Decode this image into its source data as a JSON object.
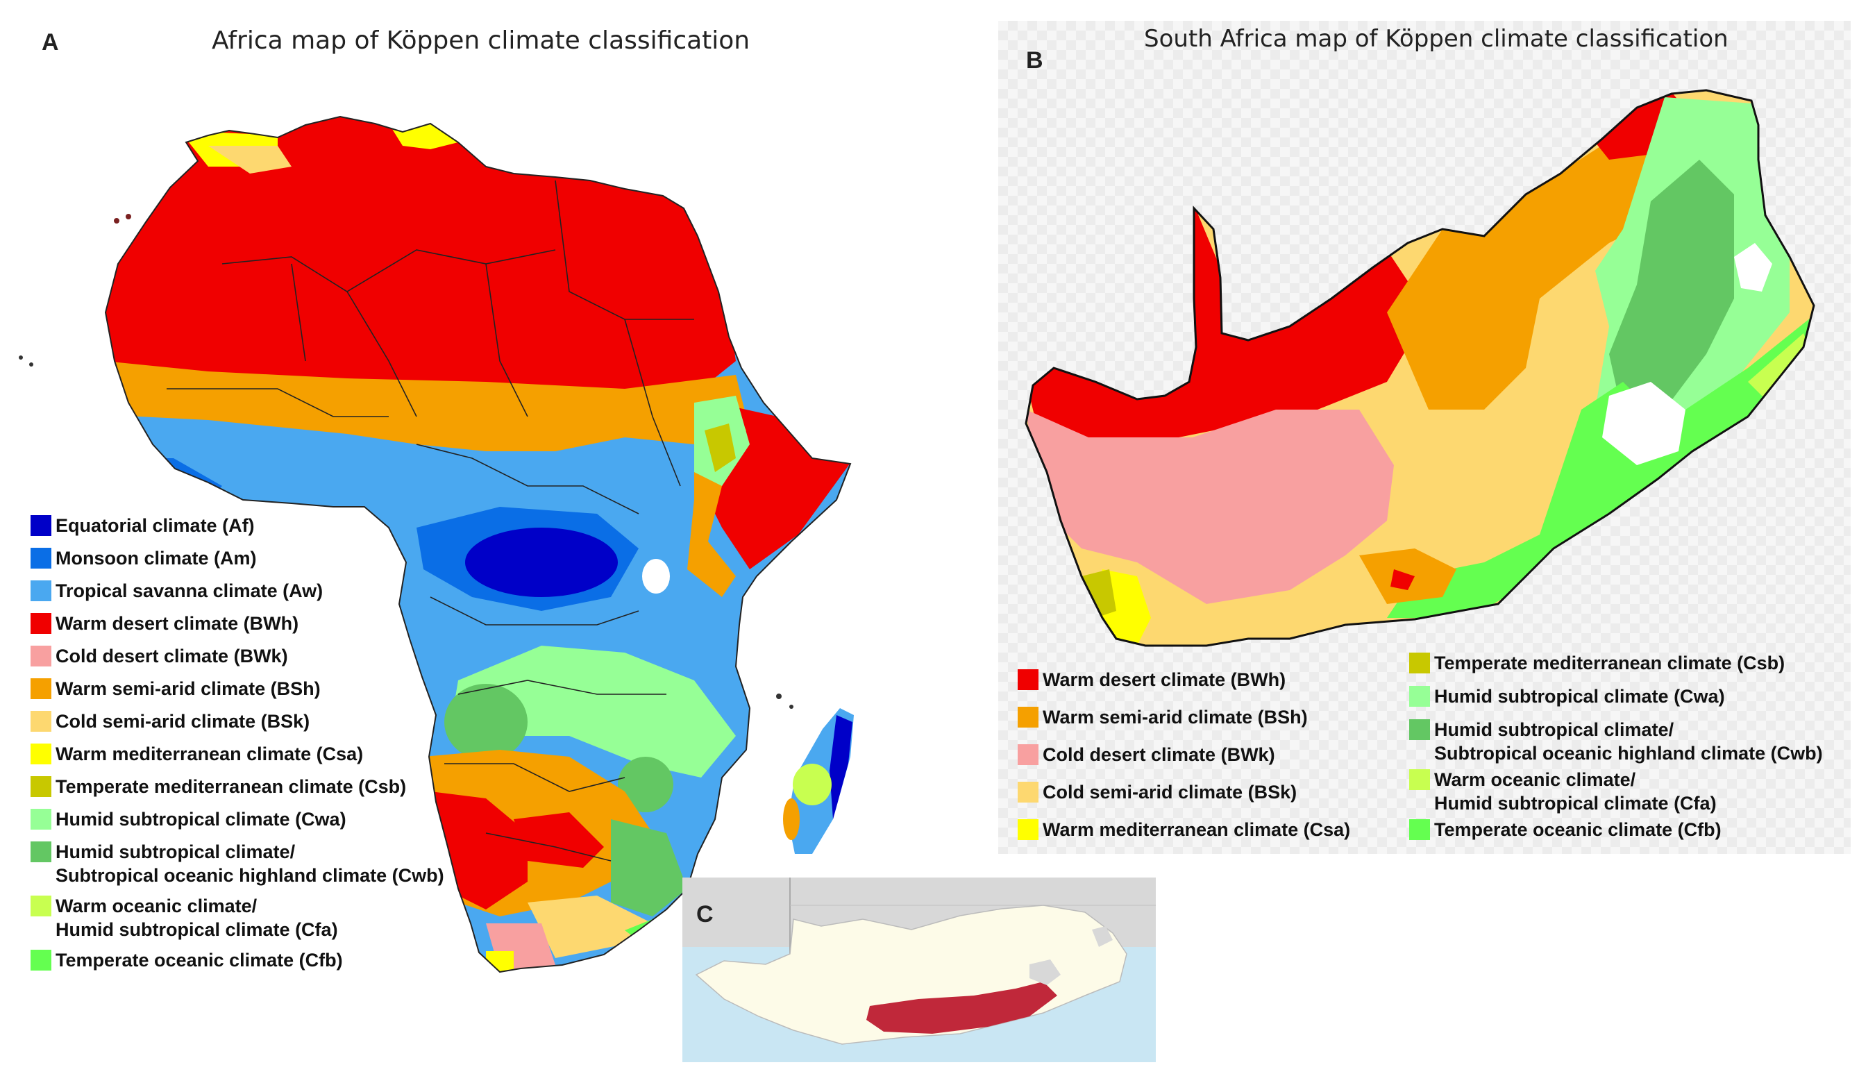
{
  "panels": {
    "a": {
      "letter": "A",
      "title": "Africa map of Köppen climate classification"
    },
    "b": {
      "letter": "B",
      "title": "South Africa map of Köppen climate classification"
    },
    "c": {
      "letter": "C"
    }
  },
  "legend_a": [
    {
      "label": "Equatorial climate (Af)",
      "color": "#0000c8"
    },
    {
      "label": "Monsoon climate (Am)",
      "color": "#0a6ee6"
    },
    {
      "label": "Tropical savanna climate (Aw)",
      "color": "#4aa8f0"
    },
    {
      "label": "Warm desert climate (BWh)",
      "color": "#f00000"
    },
    {
      "label": "Cold desert climate (BWk)",
      "color": "#f8a0a0"
    },
    {
      "label": "Warm semi-arid climate (BSh)",
      "color": "#f5a000"
    },
    {
      "label": "Cold semi-arid climate (BSk)",
      "color": "#fdd870"
    },
    {
      "label": "Warm mediterranean climate (Csa)",
      "color": "#ffff00"
    },
    {
      "label": "Temperate mediterranean climate (Csb)",
      "color": "#c8c800"
    },
    {
      "label": "Humid subtropical climate (Cwa)",
      "color": "#96ff96"
    },
    {
      "label": [
        "Humid subtropical climate/",
        "Subtropical oceanic highland climate (Cwb)"
      ],
      "color": "#63c763"
    },
    {
      "label": [
        "Warm oceanic climate/",
        "Humid subtropical climate (Cfa)"
      ],
      "color": "#c8ff50"
    },
    {
      "label": "Temperate oceanic climate (Cfb)",
      "color": "#64ff50"
    }
  ],
  "legend_b_left": [
    {
      "label": "Warm desert climate (BWh)",
      "color": "#f00000"
    },
    {
      "label": "Warm semi-arid climate (BSh)",
      "color": "#f5a000"
    },
    {
      "label": "Cold desert climate (BWk)",
      "color": "#f8a0a0"
    },
    {
      "label": "Cold semi-arid climate (BSk)",
      "color": "#fdd870"
    },
    {
      "label": "Warm mediterranean climate (Csa)",
      "color": "#ffff00"
    }
  ],
  "legend_b_right": [
    {
      "label": "Temperate mediterranean climate (Csb)",
      "color": "#c8c800"
    },
    {
      "label": "Humid subtropical climate (Cwa)",
      "color": "#96ff96"
    },
    {
      "label": [
        "Humid subtropical climate/",
        "Subtropical oceanic highland climate (Cwb)"
      ],
      "color": "#63c763"
    },
    {
      "label": [
        "Warm oceanic climate/",
        "Humid subtropical climate (Cfa)"
      ],
      "color": "#c8ff50"
    },
    {
      "label": "Temperate oceanic climate (Cfb)",
      "color": "#64ff50"
    }
  ],
  "inset": {
    "highlight_color": "#c0283a",
    "land_color": "#fdfbe8",
    "neighbour_color": "#d8d8d8",
    "sea_color": "#c9e6f3"
  }
}
